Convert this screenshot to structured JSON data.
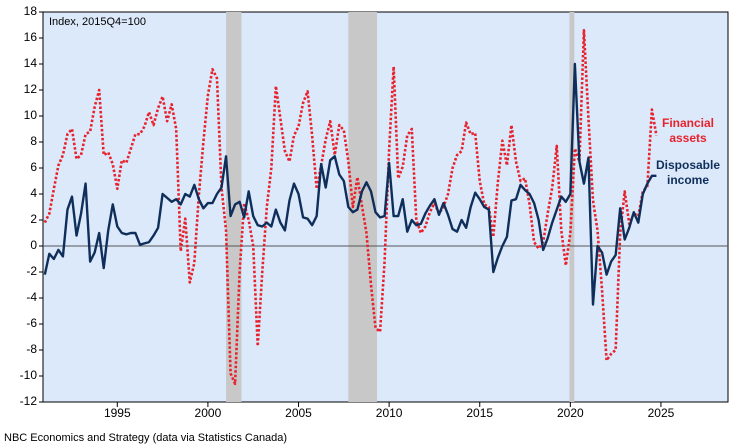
{
  "chart_data": {
    "type": "line",
    "note": "Index, 2015Q4=100",
    "source": "NBC Economics and Strategy (data via Statistics Canada)",
    "xlim": [
      1990.9,
      2028.7
    ],
    "xticks": [
      1995,
      2000,
      2005,
      2010,
      2015,
      2020,
      2025
    ],
    "ylim": [
      -12,
      18
    ],
    "yticks": [
      -12,
      -10,
      -8,
      -6,
      -4,
      -2,
      0,
      2,
      4,
      6,
      8,
      10,
      12,
      14,
      16,
      18
    ],
    "shaded_periods": [
      {
        "start": 2001.0,
        "end": 2001.85
      },
      {
        "start": 2007.75,
        "end": 2009.33
      },
      {
        "start": 2019.95,
        "end": 2020.22
      }
    ],
    "x": [
      1991,
      1991.25,
      1991.5,
      1991.75,
      1992,
      1992.25,
      1992.5,
      1992.75,
      1993,
      1993.25,
      1993.5,
      1993.75,
      1994,
      1994.25,
      1994.5,
      1994.75,
      1995,
      1995.25,
      1995.5,
      1995.75,
      1996,
      1996.25,
      1996.5,
      1996.75,
      1997,
      1997.25,
      1997.5,
      1997.75,
      1998,
      1998.25,
      1998.5,
      1998.75,
      1999,
      1999.25,
      1999.5,
      1999.75,
      2000,
      2000.25,
      2000.5,
      2000.75,
      2001,
      2001.25,
      2001.5,
      2001.75,
      2002,
      2002.25,
      2002.5,
      2002.75,
      2003,
      2003.25,
      2003.5,
      2003.75,
      2004,
      2004.25,
      2004.5,
      2004.75,
      2005,
      2005.25,
      2005.5,
      2005.75,
      2006,
      2006.25,
      2006.5,
      2006.75,
      2007,
      2007.25,
      2007.5,
      2007.75,
      2008,
      2008.25,
      2008.5,
      2008.75,
      2009,
      2009.25,
      2009.5,
      2009.75,
      2010,
      2010.25,
      2010.5,
      2010.75,
      2011,
      2011.25,
      2011.5,
      2011.75,
      2012,
      2012.25,
      2012.5,
      2012.75,
      2013,
      2013.25,
      2013.5,
      2013.75,
      2014,
      2014.25,
      2014.5,
      2014.75,
      2015,
      2015.25,
      2015.5,
      2015.75,
      2016,
      2016.25,
      2016.5,
      2016.75,
      2017,
      2017.25,
      2017.5,
      2017.75,
      2018,
      2018.25,
      2018.5,
      2018.75,
      2019,
      2019.25,
      2019.5,
      2019.75,
      2020,
      2020.25,
      2020.5,
      2020.75,
      2021,
      2021.25,
      2021.5,
      2021.75,
      2022,
      2022.25,
      2022.5,
      2022.75,
      2023,
      2023.25,
      2023.5,
      2023.75,
      2024,
      2024.25,
      2024.5,
      2024.75
    ],
    "series": [
      {
        "name": "Financial assets",
        "color": "#e8222c",
        "dashed": true,
        "values": [
          1.8,
          2.5,
          4.4,
          6.2,
          7.0,
          8.6,
          9.0,
          6.7,
          7.0,
          8.6,
          8.8,
          10.7,
          12.0,
          7.0,
          7.2,
          6.3,
          4.4,
          6.6,
          6.4,
          7.5,
          8.6,
          8.6,
          9.2,
          10.3,
          9.3,
          10.6,
          11.5,
          9.6,
          10.9,
          9.0,
          -0.4,
          2.1,
          -2.8,
          -1.3,
          3.9,
          8.0,
          11.6,
          13.6,
          12.9,
          4.5,
          1.2,
          -9.8,
          -10.6,
          -2.0,
          3.3,
          2.0,
          0.0,
          -7.7,
          -2.0,
          3.0,
          6.0,
          12.3,
          9.8,
          7.3,
          6.5,
          8.5,
          9.2,
          11.0,
          11.9,
          8.5,
          4.4,
          6.2,
          8.2,
          9.6,
          7.0,
          9.3,
          8.9,
          6.5,
          3.0,
          5.3,
          3.1,
          1.0,
          -3.0,
          -6.3,
          -6.6,
          -1.2,
          7.4,
          13.8,
          5.2,
          6.1,
          8.5,
          9.0,
          2.0,
          1.0,
          1.5,
          2.6,
          3.3,
          2.5,
          3.0,
          4.0,
          6.0,
          7.0,
          7.3,
          9.5,
          8.6,
          8.7,
          5.0,
          3.2,
          3.0,
          0.7,
          4.9,
          8.1,
          6.2,
          9.3,
          6.5,
          5.0,
          5.2,
          3.2,
          0.3,
          -0.2,
          0.3,
          2.5,
          4.5,
          7.7,
          1.2,
          -1.5,
          1.0,
          7.5,
          6.5,
          16.6,
          9.8,
          3.5,
          1.2,
          -3.4,
          -8.8,
          -8.3,
          -8.0,
          1.0,
          4.2,
          1.7,
          2.5,
          2.3,
          4.2,
          4.6,
          10.5,
          8.5
        ]
      },
      {
        "name": "Disposable income",
        "color": "#0f2f5a",
        "dashed": false,
        "values": [
          -2.2,
          -0.6,
          -1.0,
          -0.3,
          -0.8,
          2.8,
          3.8,
          0.8,
          2.5,
          4.8,
          -1.2,
          -0.5,
          1.0,
          -1.7,
          1.2,
          3.2,
          1.5,
          1.0,
          0.9,
          1.0,
          1.0,
          0.1,
          0.2,
          0.3,
          0.8,
          1.4,
          4.0,
          3.7,
          3.4,
          3.6,
          3.2,
          4.0,
          3.8,
          4.7,
          3.6,
          2.9,
          3.3,
          3.3,
          4.0,
          4.5,
          6.9,
          2.3,
          3.2,
          3.4,
          2.2,
          4.2,
          2.3,
          1.6,
          1.5,
          1.8,
          1.5,
          2.8,
          1.8,
          1.2,
          3.5,
          4.8,
          4.0,
          2.2,
          2.1,
          1.6,
          2.3,
          6.3,
          4.5,
          6.6,
          6.9,
          5.5,
          5.0,
          3.0,
          2.6,
          2.8,
          4.2,
          4.9,
          4.2,
          2.6,
          2.2,
          2.3,
          6.4,
          2.3,
          2.3,
          3.6,
          1.1,
          2.0,
          1.6,
          1.7,
          2.5,
          3.1,
          3.6,
          2.4,
          3.3,
          2.4,
          1.3,
          1.1,
          2.0,
          1.4,
          3.0,
          4.1,
          3.6,
          3.0,
          2.8,
          -2.0,
          -0.9,
          0.0,
          0.7,
          3.5,
          3.6,
          4.7,
          4.3,
          4.0,
          3.3,
          2.0,
          -0.3,
          0.6,
          1.8,
          2.8,
          3.8,
          3.4,
          4.0,
          14.0,
          6.5,
          4.8,
          6.8,
          -4.5,
          0.0,
          -0.5,
          -2.2,
          -1.2,
          -0.7,
          2.9,
          0.5,
          1.4,
          2.6,
          1.8,
          4.0,
          4.8,
          5.4,
          5.4
        ]
      }
    ]
  }
}
